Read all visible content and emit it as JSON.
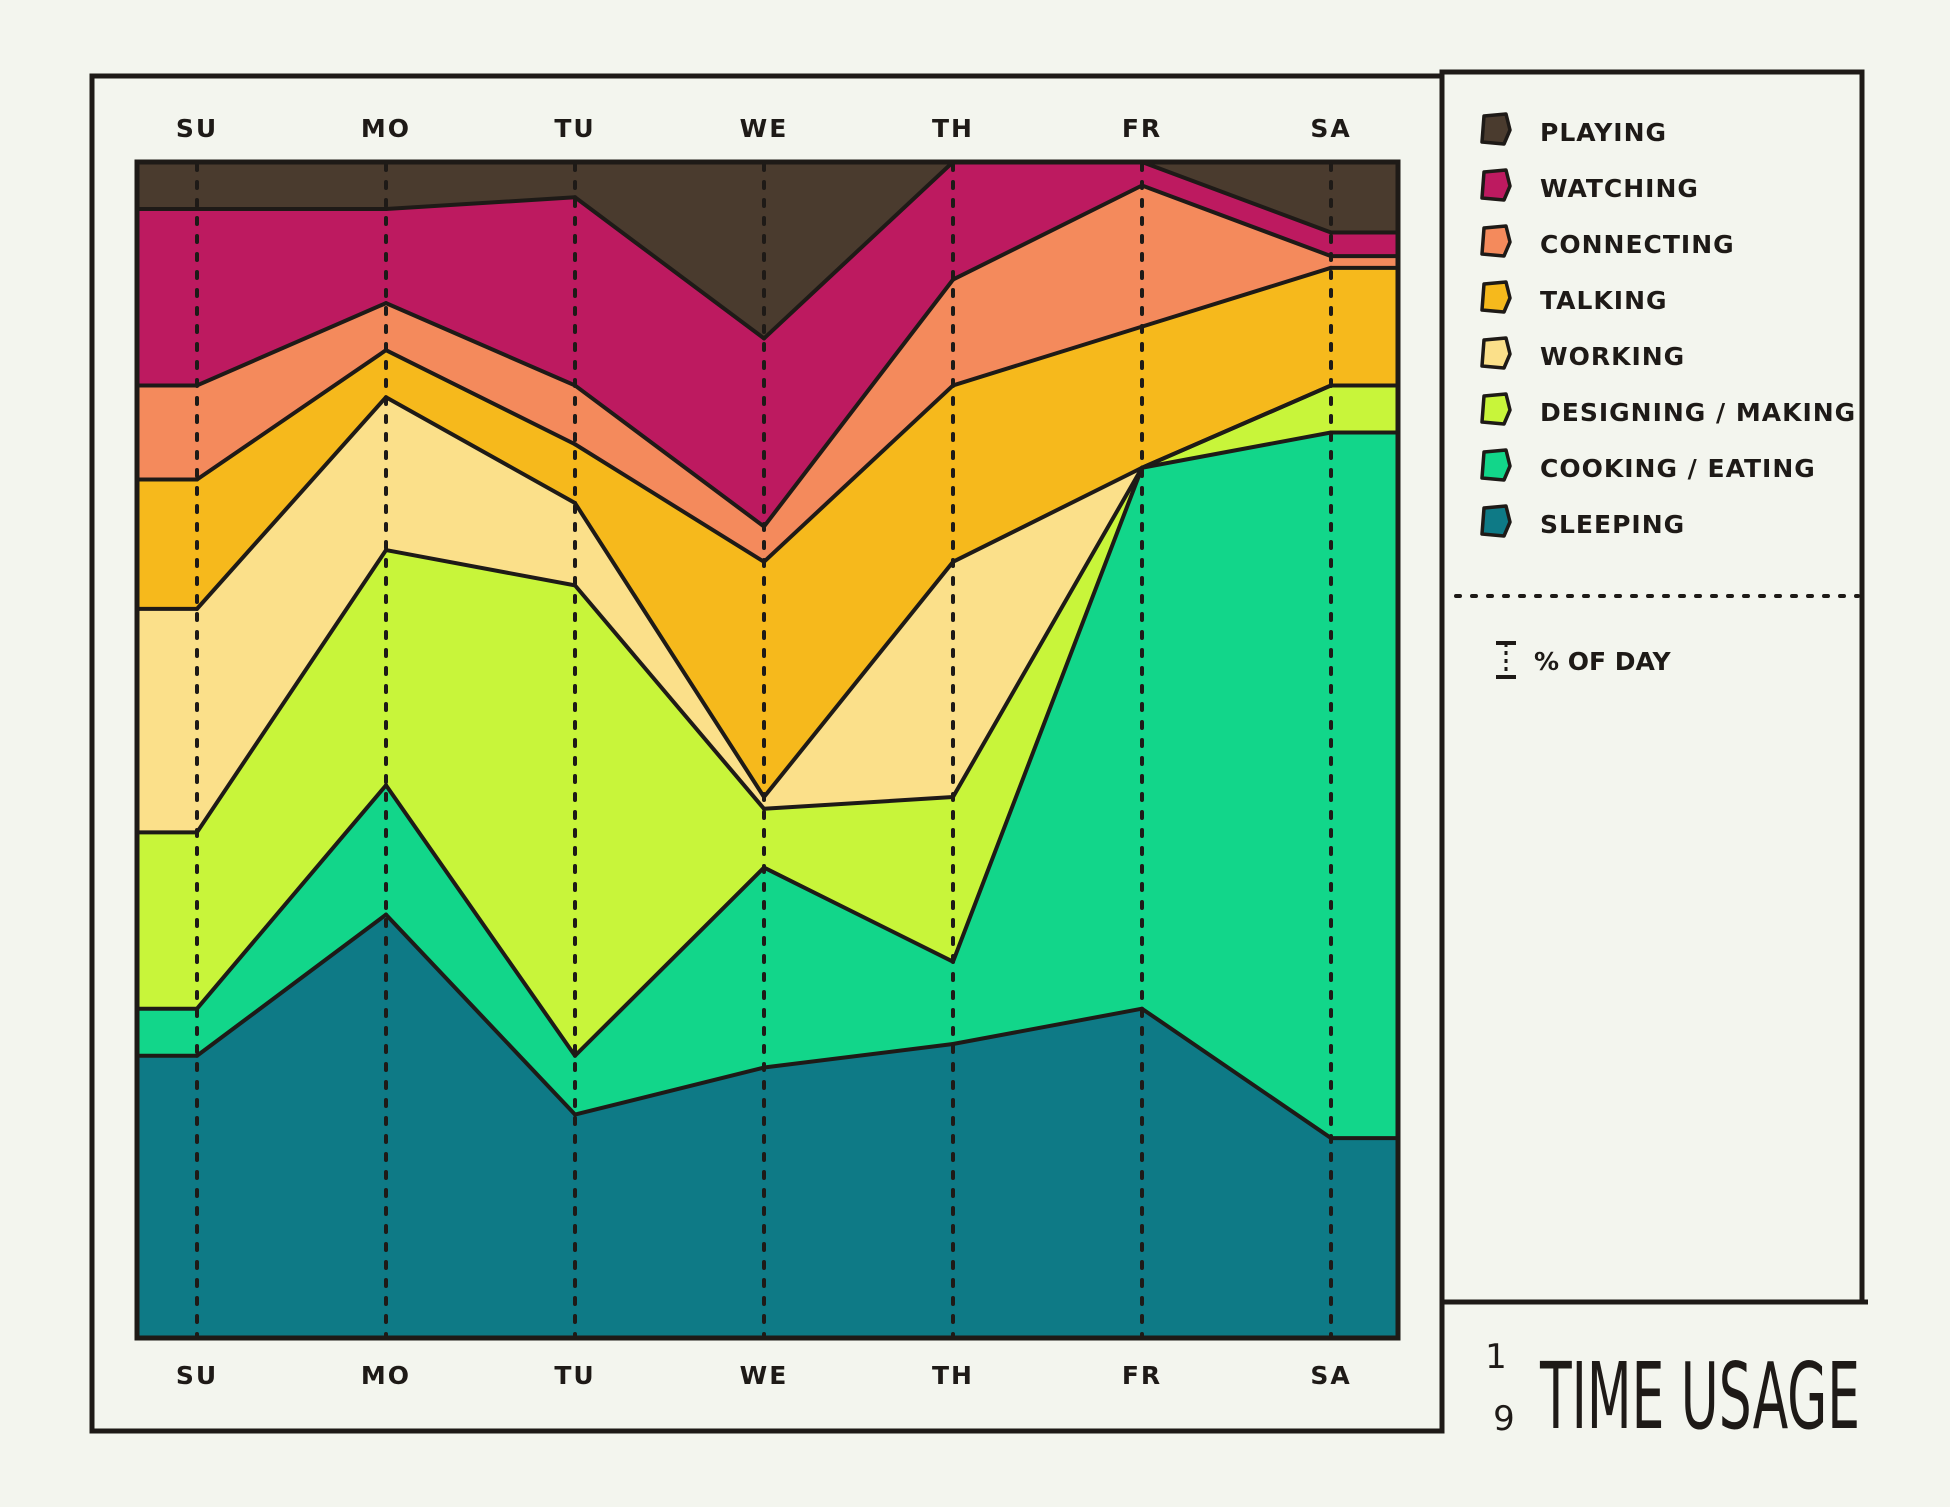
{
  "chart_data": {
    "type": "area",
    "stacked": true,
    "normalized": true,
    "categories": [
      "SU",
      "MO",
      "TU",
      "WE",
      "TH",
      "FR",
      "SA"
    ],
    "series": [
      {
        "name": "SLEEPING",
        "color": "#0e7a86",
        "values": [
          24,
          36,
          19,
          23,
          25,
          28,
          17
        ]
      },
      {
        "name": "COOKING / EATING",
        "color": "#12d68a",
        "values": [
          4,
          11,
          5,
          17,
          7,
          46,
          60
        ]
      },
      {
        "name": "DESIGNING / MAKING",
        "color": "#c8f53a",
        "values": [
          15,
          20,
          40,
          5,
          14,
          0,
          4
        ]
      },
      {
        "name": "WORKING",
        "color": "#fbe08a",
        "values": [
          19,
          13,
          7,
          1,
          20,
          0,
          0
        ]
      },
      {
        "name": "TALKING",
        "color": "#f6b91c",
        "values": [
          11,
          4,
          5,
          20,
          15,
          12,
          10
        ]
      },
      {
        "name": "CONNECTING",
        "color": "#f48a5c",
        "values": [
          8,
          4,
          5,
          3,
          9,
          12,
          1
        ]
      },
      {
        "name": "WATCHING",
        "color": "#bd1a60",
        "values": [
          15,
          8,
          16,
          16,
          10,
          2,
          2
        ]
      },
      {
        "name": "PLAYING",
        "color": "#4a3b2e",
        "values": [
          4,
          4,
          3,
          15,
          0,
          0,
          6
        ]
      }
    ],
    "ylim": [
      0,
      100
    ],
    "xlabel": "",
    "ylabel": "",
    "unit_note": "% OF DAY",
    "legend_position": "right",
    "grid": true,
    "title": "TIME USAGE",
    "figure_number": {
      "top": "1",
      "bottom": "9"
    }
  }
}
